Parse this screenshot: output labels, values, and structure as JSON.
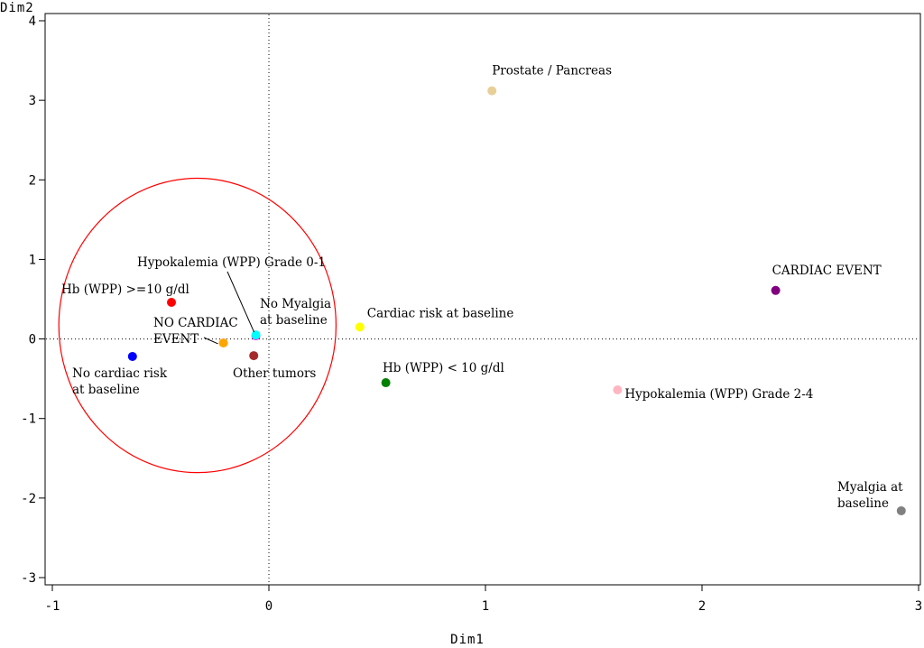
{
  "chart_data": {
    "type": "scatter",
    "xlabel": "Dim1",
    "ylabel": "Dim2",
    "xlim": [
      -1,
      3
    ],
    "ylim": [
      -3,
      4
    ],
    "x_ticks": [
      -1,
      0,
      1,
      2,
      3
    ],
    "y_ticks": [
      -3,
      -2,
      -1,
      0,
      1,
      2,
      3,
      4
    ],
    "x_tick_labels": [
      "-1",
      "0",
      "1",
      "2",
      "3"
    ],
    "y_tick_labels": [
      "-3",
      "-2",
      "-1",
      "0",
      "1",
      "2",
      "3",
      "4"
    ],
    "reference_lines": {
      "x": 0,
      "y": 0,
      "style": "dotted"
    },
    "circle": {
      "center": [
        -0.33,
        0.17
      ],
      "radius_x": 0.64,
      "radius_y": 1.85,
      "color": "#ff0000"
    },
    "points": [
      {
        "id": "prostate",
        "lines": [
          "Prostate / Pancreas"
        ],
        "x": 1.03,
        "y": 3.12,
        "color": "#e8cf98",
        "anchor": "above"
      },
      {
        "id": "cardiac-event",
        "lines": [
          "CARDIAC EVENT"
        ],
        "x": 2.34,
        "y": 0.61,
        "color": "#800080",
        "anchor": "above"
      },
      {
        "id": "hypok-0-1",
        "lines": [
          "Hypokalemia (WPP) Grade 0-1"
        ],
        "x": -0.06,
        "y": 0.04,
        "color": "#ff00ff",
        "anchor": "leader"
      },
      {
        "id": "hb-high",
        "lines": [
          "Hb (WPP) >=10 g/dl"
        ],
        "x": -0.45,
        "y": 0.46,
        "color": "#ff0000",
        "anchor": "above-left"
      },
      {
        "id": "no-myalgia",
        "lines": [
          "No Myalgia",
          "at baseline"
        ],
        "x": -0.06,
        "y": 0.05,
        "color": "#00ffff",
        "anchor": "right-above"
      },
      {
        "id": "no-cardiac-event",
        "lines": [
          "NO CARDIAC",
          "EVENT"
        ],
        "x": -0.21,
        "y": -0.05,
        "color": "#ffa500",
        "anchor": "left"
      },
      {
        "id": "cardiac-risk",
        "lines": [
          "Cardiac risk at baseline"
        ],
        "x": 0.42,
        "y": 0.15,
        "color": "#ffff00",
        "anchor": "right"
      },
      {
        "id": "no-cardiac-risk",
        "lines": [
          "No cardiac risk",
          "at baseline"
        ],
        "x": -0.63,
        "y": -0.22,
        "color": "#0000ff",
        "anchor": "below"
      },
      {
        "id": "other-tumors",
        "lines": [
          "Other tumors"
        ],
        "x": -0.07,
        "y": -0.21,
        "color": "#a52a2a",
        "anchor": "below"
      },
      {
        "id": "hb-low",
        "lines": [
          "Hb (WPP) < 10 g/dl"
        ],
        "x": 0.54,
        "y": -0.55,
        "color": "#008000",
        "anchor": "above-right"
      },
      {
        "id": "hypok-2-4",
        "lines": [
          "Hypokalemia (WPP) Grade 2-4"
        ],
        "x": 1.61,
        "y": -0.64,
        "color": "#ffb6c1",
        "anchor": "right"
      },
      {
        "id": "myalgia",
        "lines": [
          "Myalgia at",
          "baseline"
        ],
        "x": 2.92,
        "y": -2.16,
        "color": "#808080",
        "anchor": "above-left"
      }
    ]
  }
}
